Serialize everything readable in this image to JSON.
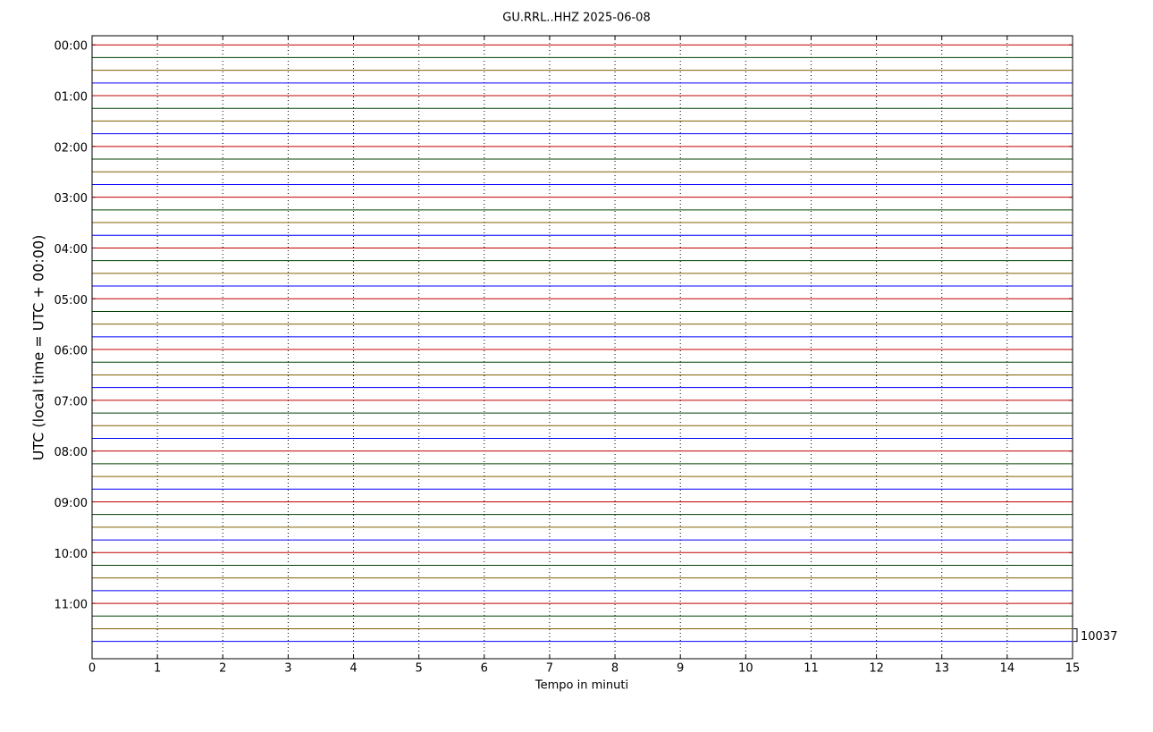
{
  "chart_data": {
    "type": "helicorder",
    "title": "GU.RRL..HHZ 2025-06-08",
    "x_label": "Tempo in minuti",
    "y_label": "UTC (local time = UTC + 00:00)",
    "xlim": [
      0,
      15
    ],
    "xticks": [
      0,
      1,
      2,
      3,
      4,
      5,
      6,
      7,
      8,
      9,
      10,
      11,
      12,
      13,
      14,
      15
    ],
    "ylim": [
      -0.18,
      12.09
    ],
    "yticks": [
      {
        "value": 0,
        "label": "00:00"
      },
      {
        "value": 1,
        "label": "01:00"
      },
      {
        "value": 2,
        "label": "02:00"
      },
      {
        "value": 3,
        "label": "03:00"
      },
      {
        "value": 4,
        "label": "04:00"
      },
      {
        "value": 5,
        "label": "05:00"
      },
      {
        "value": 6,
        "label": "06:00"
      },
      {
        "value": 7,
        "label": "07:00"
      },
      {
        "value": 8,
        "label": "08:00"
      },
      {
        "value": 9,
        "label": "09:00"
      },
      {
        "value": 10,
        "label": "10:00"
      },
      {
        "value": 11,
        "label": "11:00"
      }
    ],
    "grid": true,
    "colors": [
      "#c00000",
      "#004000",
      "#806000",
      "#0000ff"
    ],
    "scale_label": "10037"
  }
}
